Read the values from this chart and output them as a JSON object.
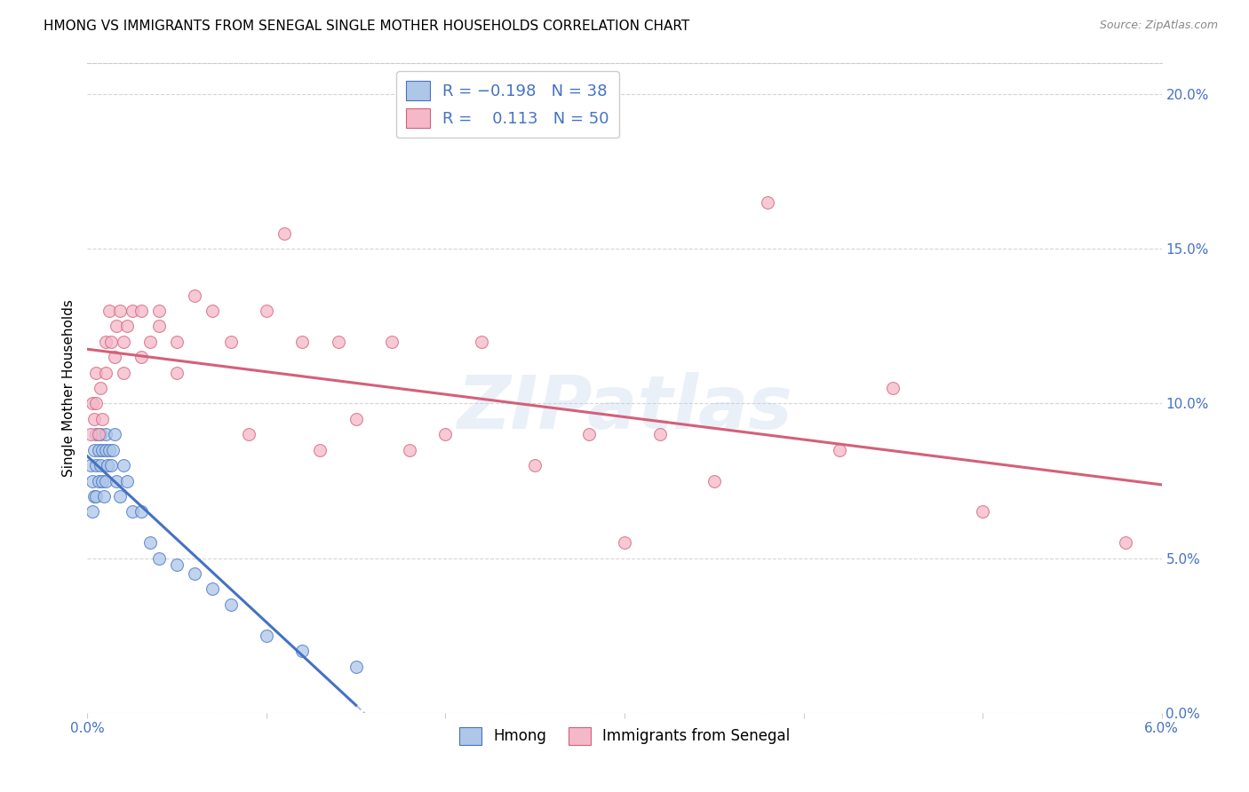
{
  "title": "HMONG VS IMMIGRANTS FROM SENEGAL SINGLE MOTHER HOUSEHOLDS CORRELATION CHART",
  "source": "Source: ZipAtlas.com",
  "ylabel": "Single Mother Households",
  "xlim": [
    0.0,
    0.06
  ],
  "ylim": [
    0.0,
    0.21
  ],
  "yticks": [
    0.0,
    0.05,
    0.1,
    0.15,
    0.2
  ],
  "ytick_labels": [
    "0.0%",
    "5.0%",
    "10.0%",
    "15.0%",
    "20.0%"
  ],
  "xticks": [
    0.0,
    0.01,
    0.02,
    0.03,
    0.04,
    0.05,
    0.06
  ],
  "xtick_labels": [
    "0.0%",
    "",
    "",
    "",
    "",
    "",
    "6.0%"
  ],
  "hmong_color": "#aec6e8",
  "senegal_color": "#f4b8c8",
  "hmong_line_color": "#4472C4",
  "senegal_line_color": "#d4607a",
  "hmong_R": -0.198,
  "hmong_N": 38,
  "senegal_R": 0.113,
  "senegal_N": 50,
  "watermark": "ZIPatlas",
  "hmong_x": [
    0.0002,
    0.0003,
    0.0003,
    0.0004,
    0.0004,
    0.0005,
    0.0005,
    0.0005,
    0.0006,
    0.0006,
    0.0007,
    0.0007,
    0.0008,
    0.0008,
    0.0009,
    0.001,
    0.001,
    0.001,
    0.0011,
    0.0012,
    0.0013,
    0.0014,
    0.0015,
    0.0016,
    0.0018,
    0.002,
    0.0022,
    0.0025,
    0.003,
    0.0035,
    0.004,
    0.005,
    0.006,
    0.007,
    0.008,
    0.01,
    0.012,
    0.015
  ],
  "hmong_y": [
    0.08,
    0.075,
    0.065,
    0.085,
    0.07,
    0.09,
    0.08,
    0.07,
    0.085,
    0.075,
    0.09,
    0.08,
    0.085,
    0.075,
    0.07,
    0.09,
    0.085,
    0.075,
    0.08,
    0.085,
    0.08,
    0.085,
    0.09,
    0.075,
    0.07,
    0.08,
    0.075,
    0.065,
    0.065,
    0.055,
    0.05,
    0.048,
    0.045,
    0.04,
    0.035,
    0.025,
    0.02,
    0.015
  ],
  "senegal_x": [
    0.0002,
    0.0003,
    0.0004,
    0.0005,
    0.0005,
    0.0006,
    0.0007,
    0.0008,
    0.001,
    0.001,
    0.0012,
    0.0013,
    0.0015,
    0.0016,
    0.0018,
    0.002,
    0.002,
    0.0022,
    0.0025,
    0.003,
    0.003,
    0.0035,
    0.004,
    0.004,
    0.005,
    0.005,
    0.006,
    0.007,
    0.008,
    0.009,
    0.01,
    0.011,
    0.012,
    0.013,
    0.014,
    0.015,
    0.017,
    0.018,
    0.02,
    0.022,
    0.025,
    0.028,
    0.03,
    0.032,
    0.035,
    0.038,
    0.042,
    0.045,
    0.05,
    0.058
  ],
  "senegal_y": [
    0.09,
    0.1,
    0.095,
    0.1,
    0.11,
    0.09,
    0.105,
    0.095,
    0.12,
    0.11,
    0.13,
    0.12,
    0.115,
    0.125,
    0.13,
    0.11,
    0.12,
    0.125,
    0.13,
    0.115,
    0.13,
    0.12,
    0.13,
    0.125,
    0.12,
    0.11,
    0.135,
    0.13,
    0.12,
    0.09,
    0.13,
    0.155,
    0.12,
    0.085,
    0.12,
    0.095,
    0.12,
    0.085,
    0.09,
    0.12,
    0.08,
    0.09,
    0.055,
    0.09,
    0.075,
    0.165,
    0.085,
    0.105,
    0.065,
    0.055
  ]
}
